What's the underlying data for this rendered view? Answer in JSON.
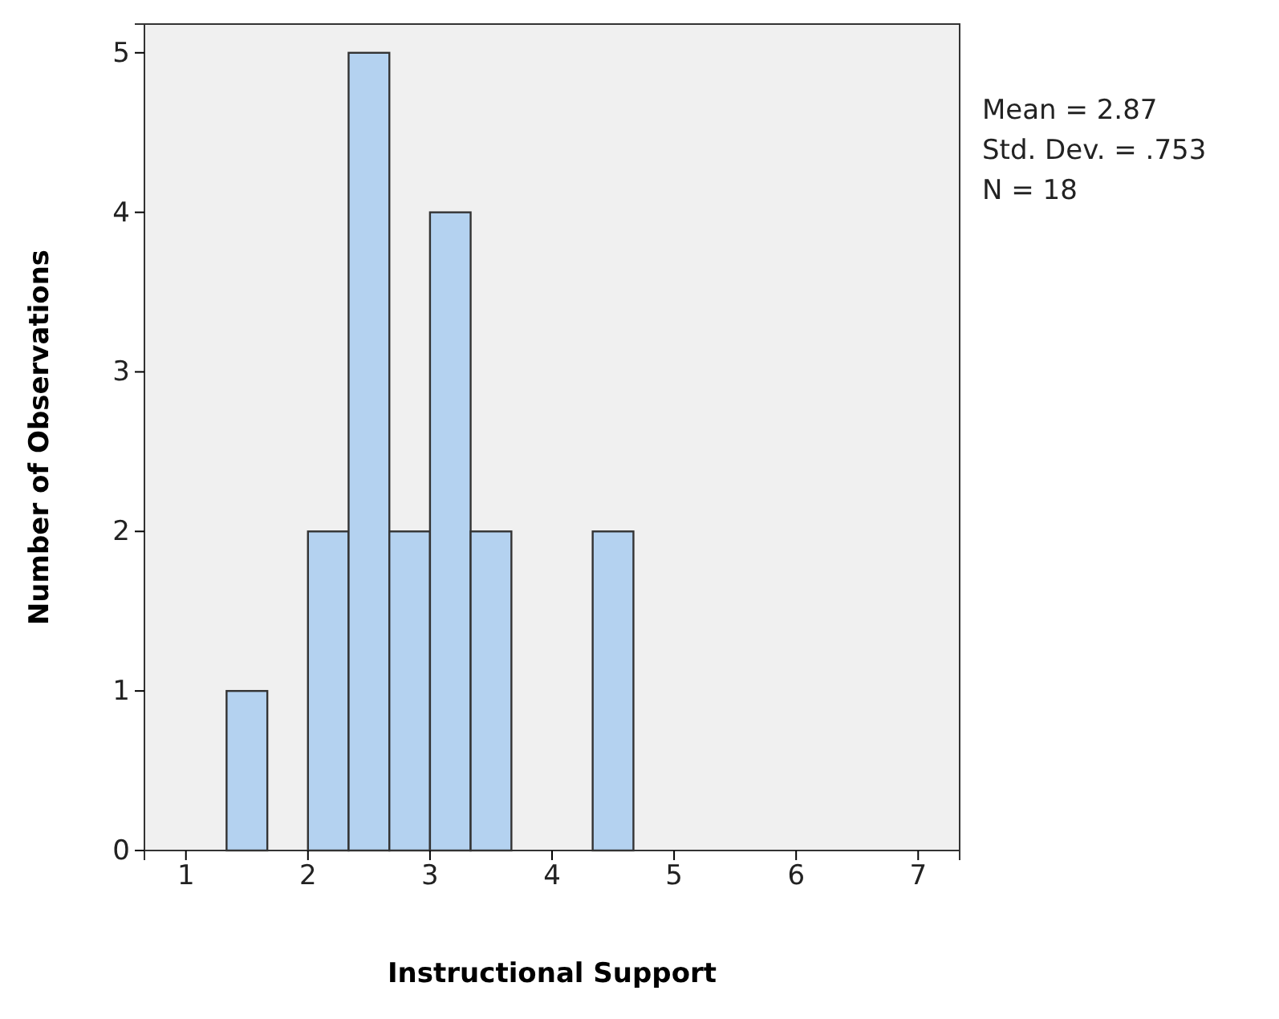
{
  "chart_data": {
    "type": "histogram",
    "xlabel": "Instructional Support",
    "ylabel": "Number of Observations",
    "bins": [
      1.333,
      1.667,
      2,
      2.333,
      2.667,
      3,
      3.333,
      3.667,
      4,
      4.333,
      4.667
    ],
    "values": [
      1,
      0,
      2,
      5,
      2,
      4,
      2,
      0,
      0,
      2
    ],
    "color": "#b4d2f0",
    "xlim": [
      0.66,
      7.34
    ],
    "xticks": [
      1,
      2,
      3,
      4,
      5,
      6,
      7
    ],
    "ylim": [
      0,
      5.18
    ],
    "yticks": [
      0,
      1,
      2,
      3,
      4,
      5
    ],
    "grid": false,
    "annotations": [
      "Mean = 2.87",
      "Std. Dev. = .753",
      "N = 18"
    ]
  }
}
